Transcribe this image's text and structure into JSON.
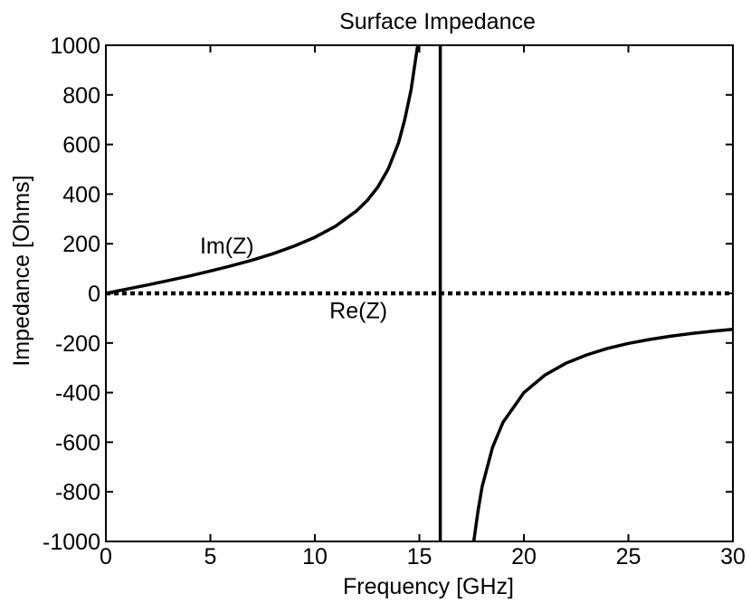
{
  "chart_data": {
    "type": "line",
    "title": "Surface Impedance",
    "xlabel": "Frequency [GHz]",
    "ylabel": "Impedance [Ohms]",
    "xlim": [
      0,
      30
    ],
    "ylim": [
      -1000,
      1000
    ],
    "xticks": [
      0,
      5,
      10,
      15,
      20,
      25,
      30
    ],
    "yticks": [
      1000,
      800,
      600,
      400,
      200,
      0,
      -200,
      -400,
      -600,
      -800,
      -1000
    ],
    "grid": false,
    "legend": "none",
    "series": [
      {
        "name": "Im(Z)",
        "style": "solid",
        "color": "#000000",
        "segments": [
          [
            [
              0,
              0
            ],
            [
              1,
              17
            ],
            [
              2,
              34
            ],
            [
              3,
              52
            ],
            [
              4,
              70
            ],
            [
              5,
              90
            ],
            [
              6,
              111
            ],
            [
              7,
              134
            ],
            [
              8,
              160
            ],
            [
              9,
              190
            ],
            [
              10,
              226
            ],
            [
              11,
              271
            ],
            [
              12,
              333
            ],
            [
              12.5,
              374
            ],
            [
              13,
              427
            ],
            [
              13.5,
              500
            ],
            [
              14,
              606
            ],
            [
              14.3,
              700
            ],
            [
              14.6,
              820
            ],
            [
              14.9,
              990
            ],
            [
              15.0,
              1000
            ]
          ],
          [
            [
              17.6,
              -1000
            ],
            [
              17.8,
              -880
            ],
            [
              18,
              -780
            ],
            [
              18.5,
              -620
            ],
            [
              19,
              -520
            ],
            [
              20,
              -400
            ],
            [
              21,
              -330
            ],
            [
              22,
              -282
            ],
            [
              23,
              -248
            ],
            [
              24,
              -222
            ],
            [
              25,
              -202
            ],
            [
              26,
              -186
            ],
            [
              27,
              -173
            ],
            [
              28,
              -162
            ],
            [
              29,
              -153
            ],
            [
              30,
              -145
            ]
          ]
        ]
      },
      {
        "name": "Re(Z)",
        "style": "dotted",
        "color": "#000000",
        "segments": [
          [
            [
              0,
              0
            ],
            [
              30,
              0
            ]
          ]
        ]
      }
    ],
    "vertical_lines": [
      {
        "x": 16,
        "style": "solid",
        "color": "#000000"
      }
    ],
    "annotations": [
      {
        "text": "Im(Z)",
        "x": 4.5,
        "y": 160
      },
      {
        "text": "Re(Z)",
        "x": 10.7,
        "y": -100
      }
    ]
  }
}
